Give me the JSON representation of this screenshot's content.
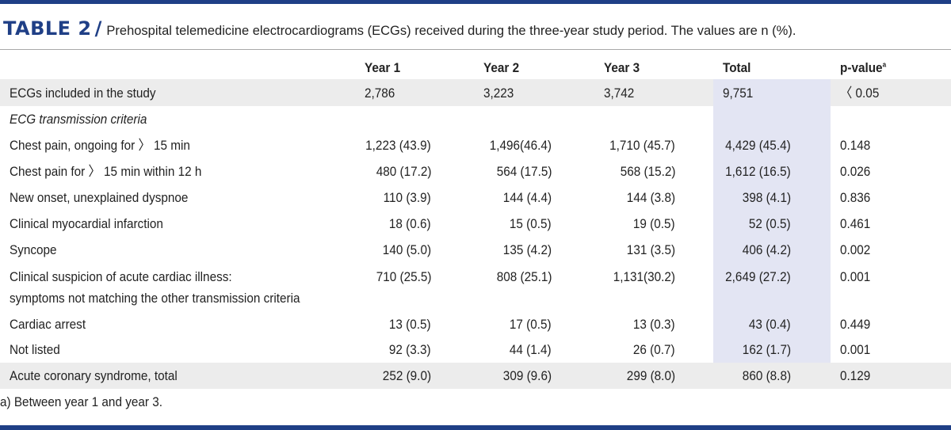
{
  "table": {
    "label": "TABLE 2",
    "separator": "/",
    "caption": "Prehospital telemedicine electrocardiograms (ECGs) received during the three-year study period. The values are n (%).",
    "headers": {
      "year1": "Year 1",
      "year2": "Year 2",
      "year3": "Year 3",
      "total": "Total",
      "pvalue": "p-value",
      "pvalue_sup": "a"
    },
    "rows": [
      {
        "label": "ECGs included in the study",
        "y1": "2,786",
        "y2": "3,223",
        "y3": "3,742",
        "total": "9,751",
        "p": "〈 0.05"
      },
      {
        "label": "ECG transmission criteria"
      },
      {
        "label": "Chest pain, ongoing for 〉 15 min",
        "y1": "1,223 (43.9)",
        "y2": "1,496(46.4)",
        "y3": "1,710 (45.7)",
        "total": "4,429 (45.4)",
        "p": "0.148"
      },
      {
        "label": "Chest pain for 〉 15 min within 12 h",
        "y1": "480 (17.2)",
        "y2": "564 (17.5)",
        "y3": "568 (15.2)",
        "total": "1,612 (16.5)",
        "p": "0.026"
      },
      {
        "label": "New onset, unexplained dyspnoe",
        "y1": "110 (3.9)",
        "y2": "144 (4.4)",
        "y3": "144 (3.8)",
        "total": "398 (4.1)",
        "p": "0.836"
      },
      {
        "label": "Clinical myocardial infarction",
        "y1": "18 (0.6)",
        "y2": "15 (0.5)",
        "y3": "19 (0.5)",
        "total": "52 (0.5)",
        "p": "0.461"
      },
      {
        "label": "Syncope",
        "y1": "140 (5.0)",
        "y2": "135 (4.2)",
        "y3": "131 (3.5)",
        "total": "406 (4.2)",
        "p": "0.002"
      },
      {
        "label": "Clinical suspicion of acute cardiac illness:",
        "label2": "symptoms not matching the other transmission criteria",
        "y1": "710 (25.5)",
        "y2": "808 (25.1)",
        "y3": "1,131(30.2)",
        "total": "2,649 (27.2)",
        "p": "0.001"
      },
      {
        "label": "Cardiac arrest",
        "y1": "13 (0.5)",
        "y2": "17 (0.5)",
        "y3": "13 (0.3)",
        "total": "43 (0.4)",
        "p": "0.449"
      },
      {
        "label": "Not listed",
        "y1": "92 (3.3)",
        "y2": "44 (1.4)",
        "y3": "26 (0.7)",
        "total": "162 (1.7)",
        "p": "0.001"
      },
      {
        "label": "Acute coronary syndrome, total",
        "y1": "252 (9.0)",
        "y2": "309 (9.6)",
        "y3": "299 (8.0)",
        "total": "860 (8.8)",
        "p": "0.129"
      }
    ],
    "footnote": "a) Between year 1 and year 3."
  }
}
